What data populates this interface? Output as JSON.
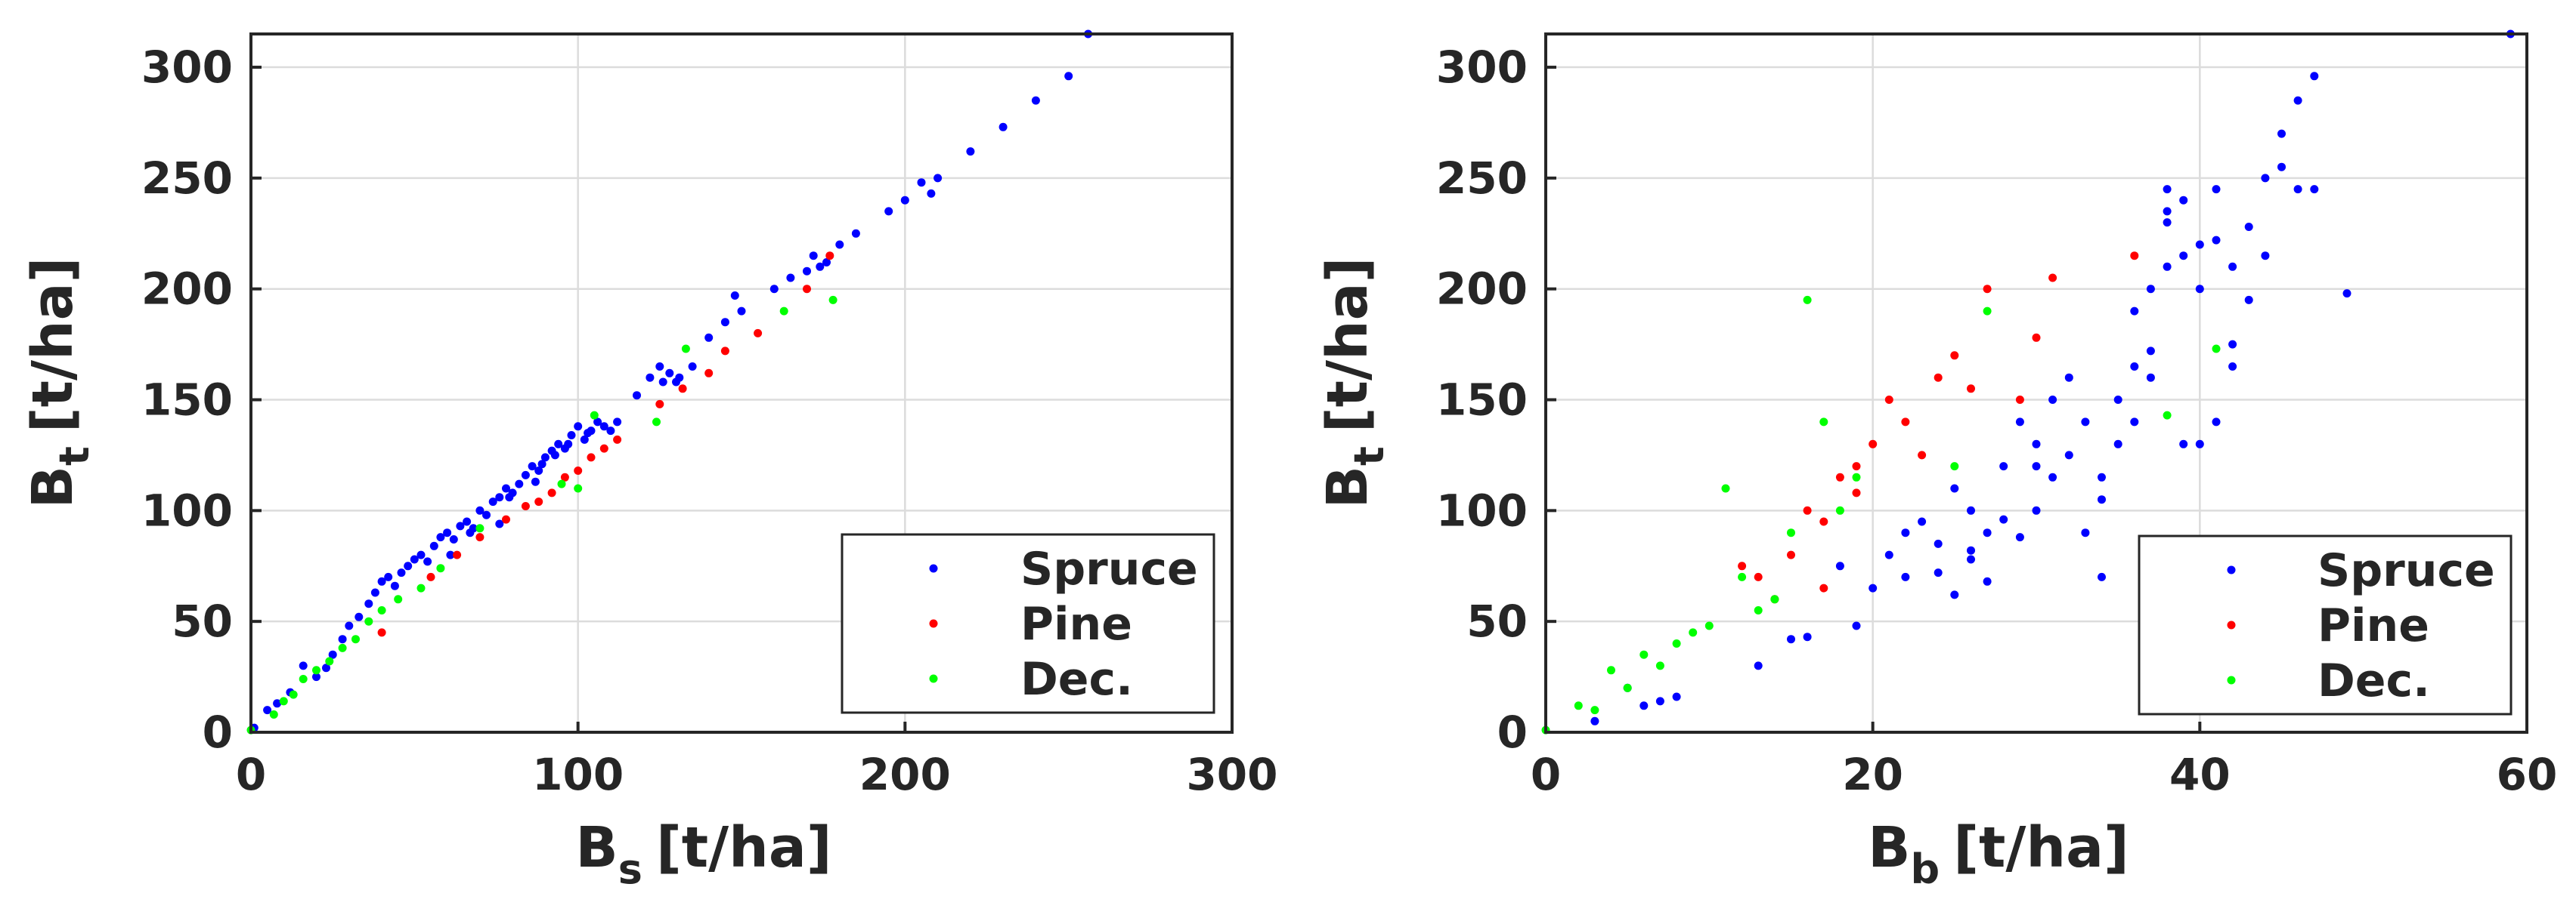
{
  "chart_data": [
    {
      "type": "scatter",
      "xlabel_main": "B",
      "xlabel_sub": "s",
      "xlabel_unit": "[t/ha]",
      "ylabel_main": "B",
      "ylabel_sub": "t",
      "ylabel_unit": "[t/ha]",
      "xlim": [
        0,
        300
      ],
      "ylim": [
        0,
        315
      ],
      "xticks": [
        "0",
        "100",
        "200",
        "300"
      ],
      "yticks": [
        "0",
        "50",
        "100",
        "150",
        "200",
        "250",
        "300"
      ],
      "xtick_values": [
        0,
        100,
        200,
        300
      ],
      "ytick_values": [
        0,
        50,
        100,
        150,
        200,
        250,
        300
      ],
      "grid": true,
      "legend_position": "bottom-right",
      "series": [
        {
          "name": "Spruce",
          "color": "#0000ff",
          "points": [
            [
              1,
              2
            ],
            [
              5,
              10
            ],
            [
              8,
              13
            ],
            [
              12,
              18
            ],
            [
              16,
              30
            ],
            [
              20,
              25
            ],
            [
              23,
              29
            ],
            [
              25,
              35
            ],
            [
              28,
              42
            ],
            [
              30,
              48
            ],
            [
              33,
              52
            ],
            [
              36,
              58
            ],
            [
              38,
              63
            ],
            [
              40,
              68
            ],
            [
              42,
              70
            ],
            [
              44,
              66
            ],
            [
              46,
              72
            ],
            [
              48,
              75
            ],
            [
              50,
              78
            ],
            [
              52,
              80
            ],
            [
              54,
              77
            ],
            [
              56,
              84
            ],
            [
              58,
              88
            ],
            [
              60,
              90
            ],
            [
              62,
              87
            ],
            [
              64,
              93
            ],
            [
              66,
              95
            ],
            [
              68,
              92
            ],
            [
              70,
              100
            ],
            [
              72,
              98
            ],
            [
              74,
              104
            ],
            [
              76,
              106
            ],
            [
              78,
              110
            ],
            [
              80,
              108
            ],
            [
              82,
              112
            ],
            [
              84,
              116
            ],
            [
              86,
              120
            ],
            [
              88,
              118
            ],
            [
              90,
              124
            ],
            [
              92,
              127
            ],
            [
              94,
              130
            ],
            [
              96,
              128
            ],
            [
              98,
              134
            ],
            [
              100,
              138
            ],
            [
              102,
              132
            ],
            [
              104,
              136
            ],
            [
              106,
              140
            ],
            [
              108,
              138
            ],
            [
              112,
              140
            ],
            [
              118,
              152
            ],
            [
              122,
              160
            ],
            [
              125,
              165
            ],
            [
              128,
              162
            ],
            [
              130,
              158
            ],
            [
              135,
              165
            ],
            [
              140,
              178
            ],
            [
              145,
              185
            ],
            [
              150,
              190
            ],
            [
              160,
              200
            ],
            [
              165,
              205
            ],
            [
              170,
              208
            ],
            [
              172,
              215
            ],
            [
              176,
              212
            ],
            [
              180,
              220
            ],
            [
              185,
              225
            ],
            [
              195,
              235
            ],
            [
              200,
              240
            ],
            [
              205,
              248
            ],
            [
              210,
              250
            ],
            [
              220,
              262
            ],
            [
              230,
              273
            ],
            [
              240,
              285
            ],
            [
              250,
              296
            ],
            [
              256,
              315
            ],
            [
              61,
              80
            ],
            [
              67,
              90
            ],
            [
              79,
              106
            ],
            [
              89,
              121
            ],
            [
              97,
              130
            ],
            [
              103,
              135
            ],
            [
              110,
              136
            ],
            [
              131,
              160
            ],
            [
              148,
              197
            ],
            [
              174,
              210
            ],
            [
              208,
              243
            ],
            [
              76,
              94
            ],
            [
              87,
              113
            ],
            [
              93,
              125
            ],
            [
              126,
              158
            ]
          ]
        },
        {
          "name": "Pine",
          "color": "#ff0000",
          "points": [
            [
              40,
              45
            ],
            [
              55,
              70
            ],
            [
              63,
              80
            ],
            [
              70,
              88
            ],
            [
              78,
              96
            ],
            [
              84,
              102
            ],
            [
              88,
              104
            ],
            [
              92,
              108
            ],
            [
              96,
              115
            ],
            [
              100,
              118
            ],
            [
              104,
              124
            ],
            [
              108,
              128
            ],
            [
              112,
              132
            ],
            [
              125,
              148
            ],
            [
              132,
              155
            ],
            [
              140,
              162
            ],
            [
              145,
              172
            ],
            [
              155,
              180
            ],
            [
              170,
              200
            ],
            [
              177,
              215
            ]
          ]
        },
        {
          "name": "Dec.",
          "color": "#00ff00",
          "points": [
            [
              0,
              1
            ],
            [
              7,
              8
            ],
            [
              10,
              14
            ],
            [
              13,
              17
            ],
            [
              16,
              24
            ],
            [
              20,
              28
            ],
            [
              24,
              32
            ],
            [
              28,
              38
            ],
            [
              32,
              42
            ],
            [
              36,
              50
            ],
            [
              40,
              55
            ],
            [
              45,
              60
            ],
            [
              52,
              65
            ],
            [
              58,
              74
            ],
            [
              70,
              92
            ],
            [
              95,
              112
            ],
            [
              100,
              110
            ],
            [
              105,
              143
            ],
            [
              124,
              140
            ],
            [
              133,
              173
            ],
            [
              163,
              190
            ],
            [
              178,
              195
            ]
          ]
        }
      ]
    },
    {
      "type": "scatter",
      "xlabel_main": "B",
      "xlabel_sub": "b",
      "xlabel_unit": "[t/ha]",
      "ylabel_main": "B",
      "ylabel_sub": "t",
      "ylabel_unit": "[t/ha]",
      "xlim": [
        0,
        60
      ],
      "ylim": [
        0,
        315
      ],
      "xticks": [
        "0",
        "20",
        "40",
        "60"
      ],
      "yticks": [
        "0",
        "50",
        "100",
        "150",
        "200",
        "250",
        "300"
      ],
      "xtick_values": [
        0,
        20,
        40,
        60
      ],
      "ytick_values": [
        0,
        50,
        100,
        150,
        200,
        250,
        300
      ],
      "grid": true,
      "legend_position": "bottom-right",
      "series": [
        {
          "name": "Spruce",
          "color": "#0000ff",
          "points": [
            [
              3,
              5
            ],
            [
              5,
              20
            ],
            [
              6,
              12
            ],
            [
              7,
              14
            ],
            [
              8,
              16
            ],
            [
              13,
              30
            ],
            [
              15,
              42
            ],
            [
              16,
              43
            ],
            [
              18,
              75
            ],
            [
              19,
              48
            ],
            [
              20,
              65
            ],
            [
              21,
              80
            ],
            [
              22,
              70
            ],
            [
              23,
              95
            ],
            [
              24,
              85
            ],
            [
              24,
              72
            ],
            [
              25,
              62
            ],
            [
              25,
              110
            ],
            [
              26,
              100
            ],
            [
              26,
              78
            ],
            [
              27,
              90
            ],
            [
              27,
              68
            ],
            [
              28,
              96
            ],
            [
              28,
              120
            ],
            [
              29,
              88
            ],
            [
              29,
              140
            ],
            [
              30,
              100
            ],
            [
              30,
              130
            ],
            [
              31,
              115
            ],
            [
              31,
              150
            ],
            [
              32,
              125
            ],
            [
              32,
              160
            ],
            [
              33,
              140
            ],
            [
              33,
              90
            ],
            [
              34,
              115
            ],
            [
              34,
              105
            ],
            [
              35,
              130
            ],
            [
              35,
              150
            ],
            [
              36,
              140
            ],
            [
              36,
              190
            ],
            [
              37,
              160
            ],
            [
              37,
              172
            ],
            [
              37,
              200
            ],
            [
              38,
              235
            ],
            [
              38,
              245
            ],
            [
              38,
              210
            ],
            [
              39,
              215
            ],
            [
              39,
              240
            ],
            [
              39,
              130
            ],
            [
              40,
              130
            ],
            [
              40,
              200
            ],
            [
              40,
              220
            ],
            [
              41,
              245
            ],
            [
              41,
              140
            ],
            [
              42,
              165
            ],
            [
              42,
              175
            ],
            [
              42,
              210
            ],
            [
              43,
              228
            ],
            [
              43,
              195
            ],
            [
              44,
              215
            ],
            [
              45,
              270
            ],
            [
              46,
              245
            ],
            [
              46,
              285
            ],
            [
              47,
              296
            ],
            [
              47,
              245
            ],
            [
              49,
              198
            ],
            [
              59,
              315
            ],
            [
              22,
              90
            ],
            [
              26,
              82
            ],
            [
              30,
              120
            ],
            [
              34,
              70
            ],
            [
              36,
              165
            ],
            [
              38,
              230
            ],
            [
              41,
              222
            ],
            [
              44,
              250
            ],
            [
              45,
              255
            ]
          ]
        },
        {
          "name": "Pine",
          "color": "#ff0000",
          "points": [
            [
              12,
              75
            ],
            [
              13,
              70
            ],
            [
              14,
              60
            ],
            [
              15,
              80
            ],
            [
              16,
              100
            ],
            [
              17,
              95
            ],
            [
              17,
              65
            ],
            [
              18,
              115
            ],
            [
              19,
              108
            ],
            [
              19,
              120
            ],
            [
              20,
              130
            ],
            [
              21,
              150
            ],
            [
              22,
              140
            ],
            [
              23,
              125
            ],
            [
              24,
              160
            ],
            [
              25,
              170
            ],
            [
              26,
              155
            ],
            [
              27,
              200
            ],
            [
              29,
              150
            ],
            [
              30,
              178
            ],
            [
              31,
              205
            ],
            [
              36,
              215
            ]
          ]
        },
        {
          "name": "Dec.",
          "color": "#00ff00",
          "points": [
            [
              0,
              1
            ],
            [
              2,
              12
            ],
            [
              3,
              10
            ],
            [
              4,
              28
            ],
            [
              5,
              20
            ],
            [
              6,
              35
            ],
            [
              7,
              30
            ],
            [
              8,
              40
            ],
            [
              9,
              45
            ],
            [
              10,
              48
            ],
            [
              11,
              110
            ],
            [
              12,
              70
            ],
            [
              13,
              55
            ],
            [
              14,
              60
            ],
            [
              15,
              90
            ],
            [
              16,
              195
            ],
            [
              17,
              140
            ],
            [
              18,
              100
            ],
            [
              19,
              115
            ],
            [
              25,
              120
            ],
            [
              27,
              190
            ],
            [
              38,
              143
            ],
            [
              41,
              173
            ]
          ]
        }
      ]
    }
  ]
}
